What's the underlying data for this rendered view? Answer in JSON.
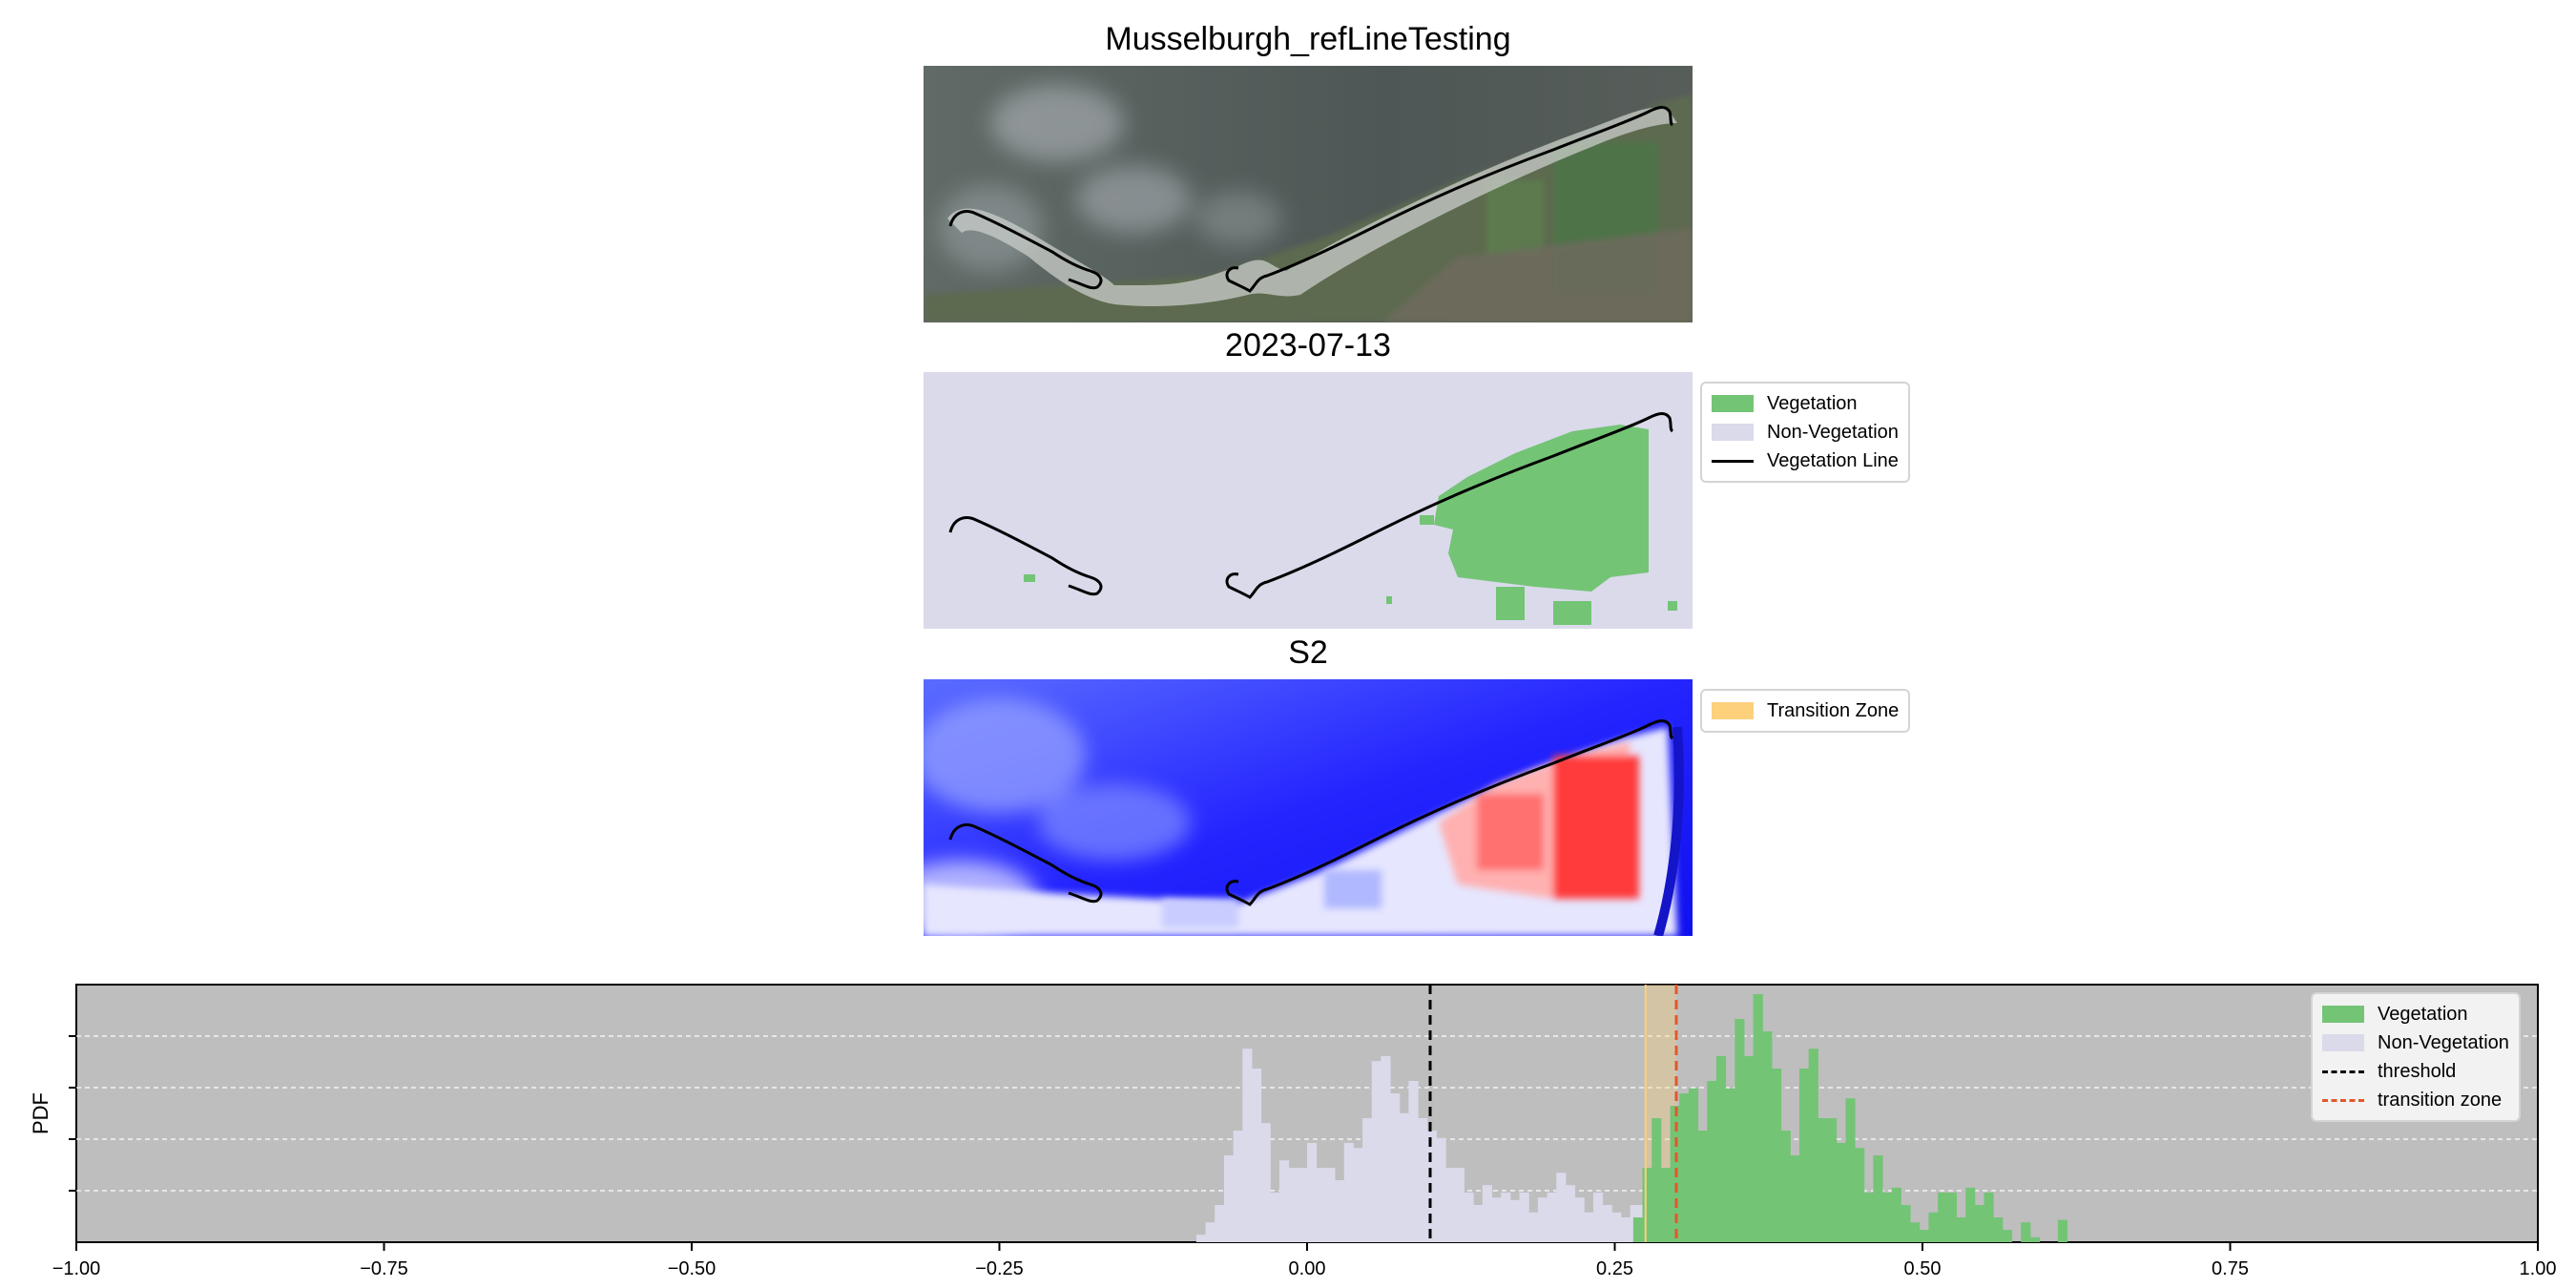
{
  "panels": {
    "rgb_title": "Musselburgh_refLineTesting",
    "class_title": "2023-07-13",
    "index_title": "S2"
  },
  "class_legend": [
    {
      "label": "Vegetation",
      "color": "#74c476",
      "kind": "patch"
    },
    {
      "label": "Non-Vegetation",
      "color": "#dadaeb",
      "kind": "patch"
    },
    {
      "label": "Vegetation Line",
      "color": "#000000",
      "kind": "line"
    }
  ],
  "index_legend": [
    {
      "label": "Transition Zone",
      "color": "#fdd07c",
      "kind": "patch"
    }
  ],
  "colors": {
    "vegetation": "#74c476",
    "non_vegetation": "#dadaeb",
    "threshold": "#000000",
    "transition": "#e0592a",
    "transition_zone": "#fdd07c",
    "plot_background": "#bebebe"
  },
  "chart_data": {
    "type": "histogram",
    "ylabel": "PDF",
    "xlim": [
      -1.0,
      1.0
    ],
    "x_ticks": [
      "−1.00",
      "−0.75",
      "−0.50",
      "−0.25",
      "0.00",
      "0.25",
      "0.50",
      "0.75",
      "1.00"
    ],
    "x_tick_values": [
      -1.0,
      -0.75,
      -0.5,
      -0.25,
      0.0,
      0.25,
      0.5,
      0.75,
      1.0
    ],
    "grid": "horizontal dashed",
    "legend_position": "upper-right",
    "threshold": 0.1,
    "transition_zone": [
      0.275,
      0.3
    ],
    "transition_line": 0.3,
    "bin_width": 0.0075,
    "series": [
      {
        "name": "Vegetation",
        "x_start": 0.265,
        "values": [
          0.1,
          0.3,
          0.5,
          0.3,
          0.55,
          0.6,
          0.62,
          0.45,
          0.65,
          0.75,
          0.62,
          0.9,
          0.75,
          1.0,
          0.85,
          0.7,
          0.45,
          0.35,
          0.7,
          0.78,
          0.5,
          0.5,
          0.4,
          0.58,
          0.38,
          0.2,
          0.35,
          0.2,
          0.22,
          0.15,
          0.08,
          0.05,
          0.12,
          0.2,
          0.2,
          0.1,
          0.22,
          0.15,
          0.2,
          0.1,
          0.05,
          0.0,
          0.08,
          0.02,
          0.0,
          0.0,
          0.09
        ]
      },
      {
        "name": "Non-Vegetation",
        "x_start": -0.09,
        "values": [
          0.03,
          0.08,
          0.15,
          0.35,
          0.45,
          0.78,
          0.7,
          0.48,
          0.2,
          0.33,
          0.3,
          0.3,
          0.4,
          0.3,
          0.3,
          0.25,
          0.4,
          0.38,
          0.5,
          0.73,
          0.75,
          0.6,
          0.52,
          0.65,
          0.5,
          0.45,
          0.42,
          0.3,
          0.3,
          0.2,
          0.15,
          0.23,
          0.18,
          0.2,
          0.17,
          0.2,
          0.12,
          0.18,
          0.2,
          0.28,
          0.23,
          0.18,
          0.12,
          0.2,
          0.15,
          0.12,
          0.1,
          0.15,
          0.15,
          0.15,
          0.05,
          0.1,
          0.05,
          0.02,
          0.05
        ]
      }
    ]
  },
  "hist_legend": [
    {
      "label": "Vegetation",
      "color": "#74c476",
      "kind": "patch"
    },
    {
      "label": "Non-Vegetation",
      "color": "#dadaeb",
      "kind": "patch"
    },
    {
      "label": "threshold",
      "color": "#000000",
      "kind": "dash"
    },
    {
      "label": "transition zone",
      "color": "#e0592a",
      "kind": "dash"
    }
  ]
}
